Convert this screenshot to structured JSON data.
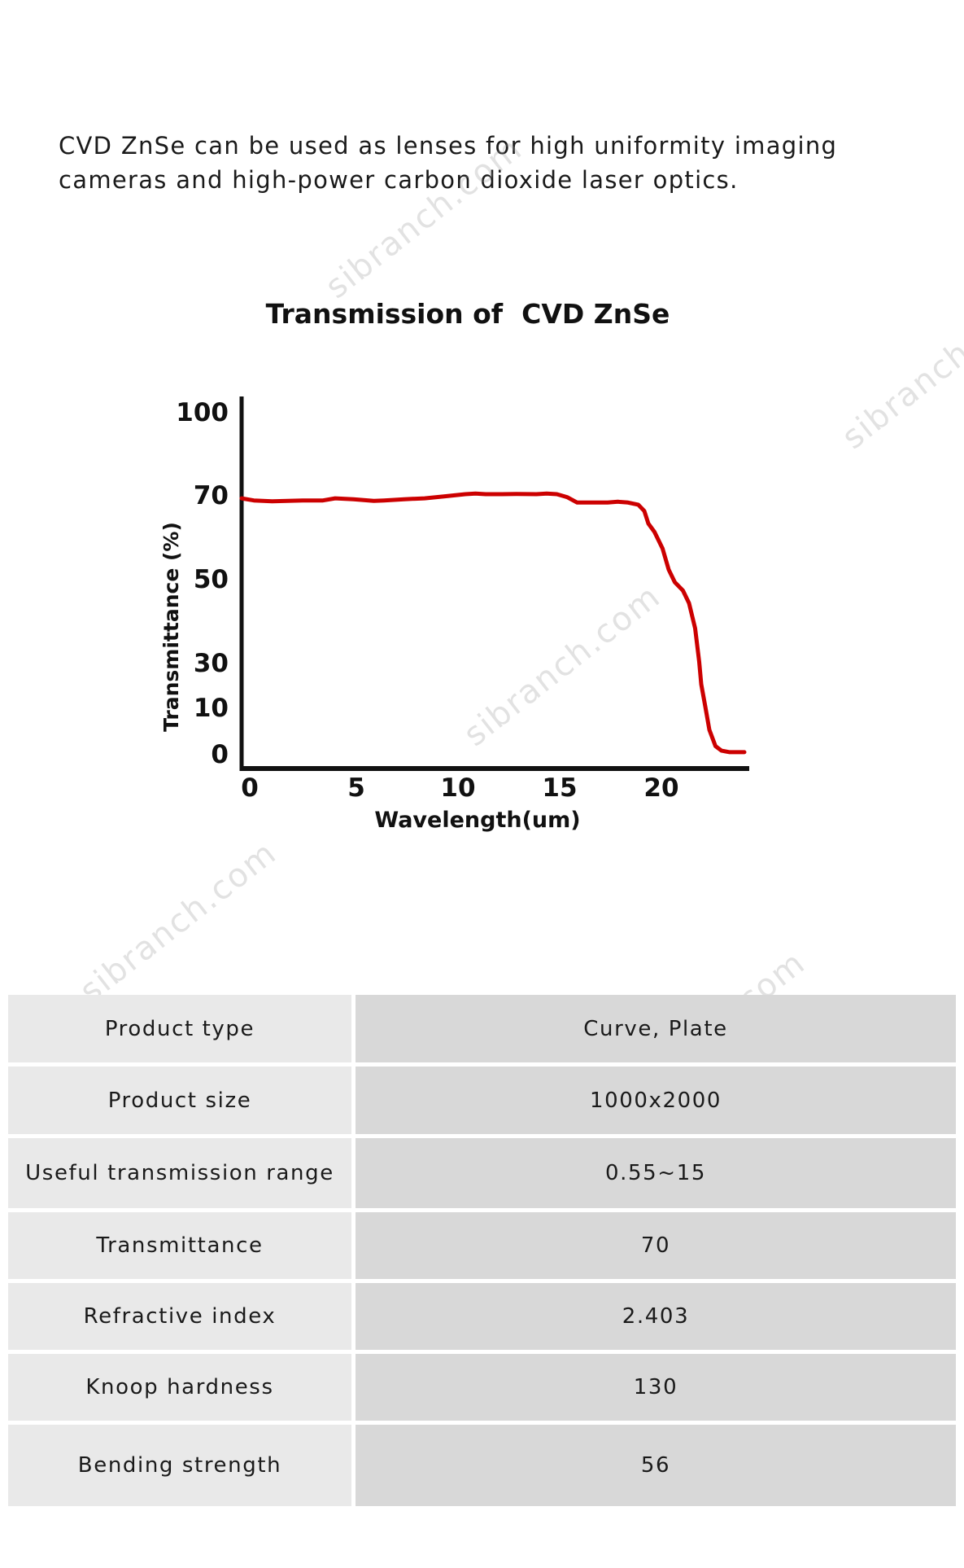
{
  "intro_text": "CVD ZnSe can be used as lenses for high uniformity imaging cameras and high-power carbon dioxide laser optics.",
  "watermark_text": "sibranch.com",
  "chart_data": {
    "type": "line",
    "title": "Transmission of  CVD ZnSe",
    "xlabel": "Wavelength(um)",
    "ylabel": "Transmittance (%)",
    "xlim": [
      0,
      24
    ],
    "x_ticks": [
      0,
      5,
      10,
      15,
      20
    ],
    "y_ticks": [
      0,
      10,
      30,
      50,
      70,
      100
    ],
    "line_color": "#cc0000",
    "grid": false,
    "series": [
      {
        "x": [
          0,
          0.6,
          1.5,
          3,
          4,
          4.6,
          5.5,
          6.5,
          7,
          8,
          9,
          10,
          11,
          11.5,
          12,
          12.8,
          13.5,
          14.5,
          15,
          15.5,
          16,
          16.5,
          17,
          18,
          18.5,
          19,
          19.5,
          19.8,
          20,
          20.3,
          20.7,
          21,
          21.3,
          21.7,
          22,
          22.3,
          22.5,
          22.6,
          22.8,
          23,
          23.3,
          23.6,
          24,
          25
        ],
        "y": [
          69,
          68.5,
          68.3,
          68.5,
          68.5,
          69,
          68.8,
          68.4,
          68.5,
          68.8,
          69,
          69.5,
          70,
          70.2,
          70,
          70,
          70.1,
          70,
          70.2,
          70,
          69.3,
          68,
          68,
          68,
          68.2,
          68,
          67.5,
          66,
          63,
          61,
          57,
          52,
          49,
          47,
          44,
          38,
          30,
          20,
          10,
          5,
          1.5,
          0.5,
          0.2,
          0.2
        ]
      }
    ]
  },
  "specs": [
    {
      "label": "Product type",
      "value": "Curve, Plate"
    },
    {
      "label": "Product size",
      "value": "1000x2000"
    },
    {
      "label": "Useful transmission range",
      "value": "0.55~15"
    },
    {
      "label": "Transmittance",
      "value": "70"
    },
    {
      "label": "Refractive index",
      "value": "2.403"
    },
    {
      "label": "Knoop hardness",
      "value": "130"
    },
    {
      "label": "Bending strength",
      "value": "56"
    }
  ]
}
